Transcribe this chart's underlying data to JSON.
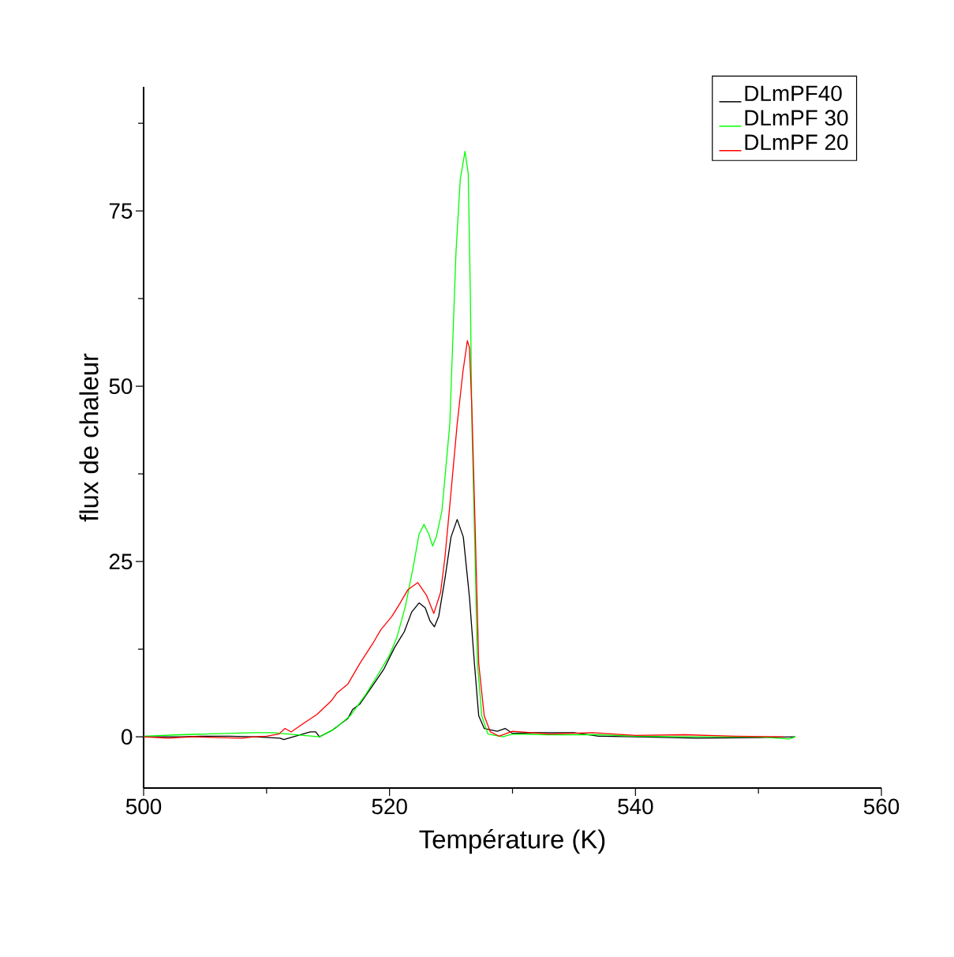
{
  "chart_data": {
    "type": "line",
    "xlabel": "Température (K)",
    "ylabel": "flux de chaleur",
    "xlim": [
      500,
      560
    ],
    "ylim": [
      -7.3,
      92.7
    ],
    "xticks": [
      500,
      {
        "value": 510,
        "label": null
      },
      520,
      {
        "value": 530,
        "label": null
      },
      540,
      {
        "value": 550,
        "label": null
      },
      560
    ],
    "yticks": [
      0,
      {
        "value": 12.5,
        "label": null
      },
      25,
      {
        "value": 37.5,
        "label": null
      },
      50,
      {
        "value": 62.5,
        "label": null
      },
      75,
      {
        "value": 87.5,
        "label": null
      }
    ],
    "grid": false,
    "legend": "top right",
    "marker": "none",
    "line_style": "solid",
    "series": [
      {
        "name": "DLmPF40",
        "color": "#000000",
        "x": [
          500,
          503,
          505,
          507,
          509,
          511.1,
          511.4,
          513.56,
          514.0,
          514.3,
          515.3,
          516.6,
          517.0,
          517.6,
          518.7,
          519.55,
          520.4,
          521.2,
          521.8,
          522.4,
          522.9,
          523.3,
          523.65,
          524.0,
          524.5,
          525.0,
          525.5,
          526.0,
          526.5,
          526.9,
          527.25,
          527.7,
          528.75,
          529.4,
          530.0,
          532,
          535,
          537,
          540,
          545,
          550,
          553
        ],
        "values": [
          0,
          0,
          0.1,
          0.1,
          0,
          -0.2,
          -0.4,
          0.7,
          0.7,
          0,
          0.9,
          2.6,
          3.9,
          4.7,
          7.5,
          9.7,
          12.7,
          15.0,
          17.8,
          19.1,
          18.4,
          16.5,
          15.7,
          17.2,
          22.5,
          28.5,
          31.0,
          28.5,
          19.9,
          10.5,
          3.0,
          1.2,
          0.8,
          1.2,
          0.5,
          0.6,
          0.6,
          0.1,
          0,
          -0.2,
          -0.1,
          0
        ]
      },
      {
        "name": "DLmPF 30",
        "color": "#00ff00",
        "x": [
          500,
          503,
          505,
          507,
          509,
          510.5,
          513.0,
          514.3,
          515.5,
          516.8,
          518.05,
          519.1,
          519.98,
          520.6,
          521.3,
          521.9,
          522.4,
          522.8,
          523.2,
          523.5,
          523.8,
          524.26,
          524.9,
          525.4,
          525.75,
          526.14,
          526.4,
          526.57,
          526.7,
          526.87,
          527.15,
          527.5,
          528.0,
          529.2,
          530,
          533,
          537,
          540,
          545,
          550,
          552.5,
          553
        ],
        "values": [
          0.1,
          0.3,
          0.4,
          0.5,
          0.6,
          0.6,
          0.2,
          0.0,
          1.1,
          3.0,
          6.0,
          9.0,
          11.6,
          14.2,
          18.7,
          24.0,
          28.9,
          30.3,
          28.9,
          27.2,
          28.5,
          32.2,
          44.6,
          69.0,
          79.5,
          83.5,
          80.3,
          63.4,
          44.6,
          32.2,
          10.5,
          3.0,
          0.4,
          0.0,
          0.4,
          0.3,
          0.3,
          0.1,
          0,
          0,
          -0.3,
          0
        ]
      },
      {
        "name": "DLmPF 20",
        "color": "#ff0000",
        "x": [
          500,
          502,
          504,
          506,
          508,
          509,
          510,
          511,
          511.5,
          512.0,
          512.9,
          514.1,
          515.3,
          515.7,
          516.6,
          517.6,
          518.7,
          519.3,
          520.2,
          520.8,
          521.5,
          522.3,
          523.0,
          523.6,
          524.15,
          524.5,
          524.9,
          525.5,
          525.97,
          526.33,
          526.5,
          526.7,
          526.93,
          527.25,
          527.7,
          528.2,
          528.9,
          530,
          533,
          536.5,
          540,
          544,
          548,
          552
        ],
        "values": [
          0,
          -0.2,
          0,
          -0.1,
          -0.2,
          0,
          0.1,
          0.4,
          1.2,
          0.7,
          1.8,
          3.2,
          5.2,
          6.2,
          7.5,
          10.5,
          13.5,
          15.3,
          17.2,
          18.9,
          21.0,
          22.0,
          20.2,
          17.6,
          20.6,
          25.5,
          33.0,
          44.6,
          52.1,
          56.5,
          55.5,
          46.5,
          31.9,
          10.5,
          3.0,
          0.7,
          0.1,
          0.8,
          0.4,
          0.6,
          0.2,
          0.3,
          0.1,
          0
        ]
      }
    ]
  }
}
